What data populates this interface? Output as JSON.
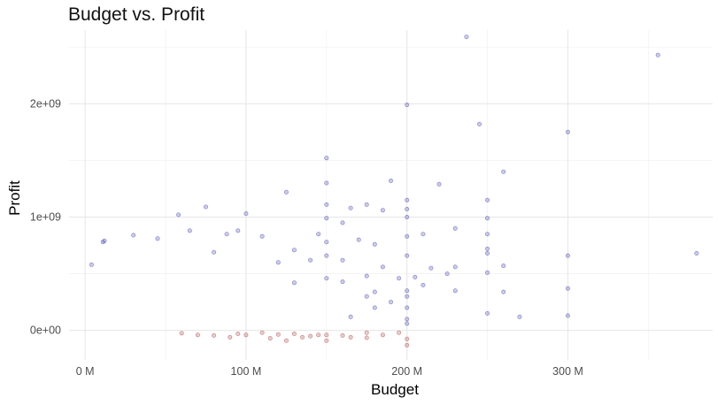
{
  "chart_data": {
    "type": "scatter",
    "title": "Budget vs. Profit",
    "xlabel": "Budget",
    "ylabel": "Profit",
    "xlim": [
      -10000000,
      390000000
    ],
    "ylim": [
      -260000000,
      2650000000
    ],
    "x_ticks": [
      0,
      100000000,
      200000000,
      300000000
    ],
    "x_tick_labels": [
      "0 M",
      "100 M",
      "200 M",
      "300 M"
    ],
    "y_ticks": [
      0,
      1000000000,
      2000000000
    ],
    "y_tick_labels": [
      "0e+00",
      "1e+09",
      "2e+09"
    ],
    "grid": true,
    "legend": "none",
    "colors": {
      "positive": "#00008b",
      "negative": "#8b0000",
      "grid": "#e6e6e6"
    },
    "point_alpha": 0.2,
    "points_note": "",
    "series": [
      {
        "color": "#00008b",
        "points": [
          [
            237000000,
            2590000000
          ],
          [
            356000000,
            2430000000
          ],
          [
            200000000,
            1990000000
          ],
          [
            245000000,
            1820000000
          ],
          [
            300000000,
            1750000000
          ],
          [
            150000000,
            1520000000
          ],
          [
            260000000,
            1400000000
          ],
          [
            190000000,
            1320000000
          ],
          [
            150000000,
            1300000000
          ],
          [
            220000000,
            1290000000
          ],
          [
            125000000,
            1220000000
          ],
          [
            200000000,
            1150000000
          ],
          [
            250000000,
            1150000000
          ],
          [
            150000000,
            1110000000
          ],
          [
            175000000,
            1110000000
          ],
          [
            165000000,
            1080000000
          ],
          [
            185000000,
            1060000000
          ],
          [
            200000000,
            1070000000
          ],
          [
            75000000,
            1090000000
          ],
          [
            58000000,
            1020000000
          ],
          [
            100000000,
            1030000000
          ],
          [
            200000000,
            1000000000
          ],
          [
            150000000,
            990000000
          ],
          [
            250000000,
            990000000
          ],
          [
            160000000,
            950000000
          ],
          [
            230000000,
            900000000
          ],
          [
            65000000,
            880000000
          ],
          [
            95000000,
            880000000
          ],
          [
            210000000,
            850000000
          ],
          [
            145000000,
            850000000
          ],
          [
            30000000,
            840000000
          ],
          [
            88000000,
            850000000
          ],
          [
            110000000,
            830000000
          ],
          [
            200000000,
            830000000
          ],
          [
            250000000,
            850000000
          ],
          [
            45000000,
            810000000
          ],
          [
            12000000,
            790000000
          ],
          [
            11000000,
            780000000
          ],
          [
            150000000,
            780000000
          ],
          [
            170000000,
            800000000
          ],
          [
            250000000,
            720000000
          ],
          [
            250000000,
            680000000
          ],
          [
            180000000,
            760000000
          ],
          [
            130000000,
            710000000
          ],
          [
            80000000,
            690000000
          ],
          [
            380000000,
            680000000
          ],
          [
            300000000,
            660000000
          ],
          [
            150000000,
            660000000
          ],
          [
            200000000,
            660000000
          ],
          [
            140000000,
            620000000
          ],
          [
            160000000,
            620000000
          ],
          [
            120000000,
            600000000
          ],
          [
            230000000,
            560000000
          ],
          [
            4000000,
            580000000
          ],
          [
            215000000,
            550000000
          ],
          [
            185000000,
            560000000
          ],
          [
            260000000,
            570000000
          ],
          [
            250000000,
            510000000
          ],
          [
            225000000,
            500000000
          ],
          [
            205000000,
            470000000
          ],
          [
            175000000,
            480000000
          ],
          [
            150000000,
            460000000
          ],
          [
            195000000,
            460000000
          ],
          [
            160000000,
            430000000
          ],
          [
            130000000,
            420000000
          ],
          [
            210000000,
            400000000
          ],
          [
            300000000,
            370000000
          ],
          [
            260000000,
            340000000
          ],
          [
            230000000,
            350000000
          ],
          [
            200000000,
            350000000
          ],
          [
            180000000,
            340000000
          ],
          [
            175000000,
            300000000
          ],
          [
            200000000,
            300000000
          ],
          [
            250000000,
            150000000
          ],
          [
            300000000,
            130000000
          ],
          [
            270000000,
            120000000
          ],
          [
            200000000,
            200000000
          ],
          [
            190000000,
            250000000
          ],
          [
            180000000,
            200000000
          ],
          [
            165000000,
            120000000
          ],
          [
            200000000,
            60000000
          ],
          [
            200000000,
            100000000
          ]
        ]
      },
      {
        "color": "#8b0000",
        "points": [
          [
            200000000,
            -130000000
          ],
          [
            200000000,
            -75000000
          ],
          [
            175000000,
            -65000000
          ],
          [
            165000000,
            -60000000
          ],
          [
            150000000,
            -90000000
          ],
          [
            150000000,
            -40000000
          ],
          [
            130000000,
            -30000000
          ],
          [
            125000000,
            -90000000
          ],
          [
            110000000,
            -20000000
          ],
          [
            100000000,
            -40000000
          ],
          [
            120000000,
            -35000000
          ],
          [
            140000000,
            -50000000
          ],
          [
            90000000,
            -60000000
          ],
          [
            95000000,
            -30000000
          ],
          [
            80000000,
            -45000000
          ],
          [
            60000000,
            -25000000
          ],
          [
            70000000,
            -40000000
          ],
          [
            160000000,
            -45000000
          ],
          [
            185000000,
            -40000000
          ],
          [
            195000000,
            -20000000
          ],
          [
            175000000,
            -20000000
          ],
          [
            115000000,
            -70000000
          ],
          [
            135000000,
            -60000000
          ],
          [
            145000000,
            -40000000
          ]
        ]
      }
    ]
  }
}
